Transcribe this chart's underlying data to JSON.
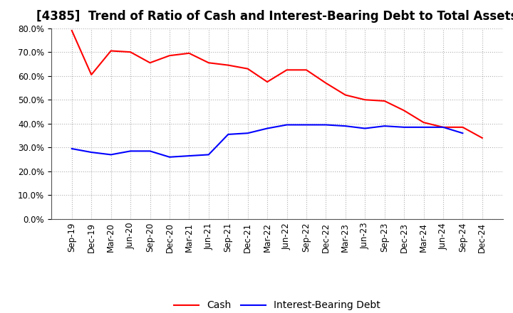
{
  "title": "[4385]  Trend of Ratio of Cash and Interest-Bearing Debt to Total Assets",
  "x_labels": [
    "Sep-19",
    "Dec-19",
    "Mar-20",
    "Jun-20",
    "Sep-20",
    "Dec-20",
    "Mar-21",
    "Jun-21",
    "Sep-21",
    "Dec-21",
    "Mar-22",
    "Jun-22",
    "Sep-22",
    "Dec-22",
    "Mar-23",
    "Jun-23",
    "Sep-23",
    "Dec-23",
    "Mar-24",
    "Jun-24",
    "Sep-24",
    "Dec-24"
  ],
  "cash": [
    79.0,
    60.5,
    70.5,
    70.0,
    65.5,
    68.5,
    69.5,
    65.5,
    64.5,
    63.0,
    57.5,
    62.5,
    62.5,
    57.0,
    52.0,
    50.0,
    49.5,
    45.5,
    40.5,
    38.5,
    38.5,
    34.0
  ],
  "debt": [
    29.5,
    28.0,
    27.0,
    28.5,
    28.5,
    26.0,
    26.5,
    27.0,
    35.5,
    36.0,
    38.0,
    39.5,
    39.5,
    39.5,
    39.0,
    38.0,
    39.0,
    38.5,
    38.5,
    38.5,
    36.0,
    null
  ],
  "cash_color": "#ff0000",
  "debt_color": "#0000ff",
  "ylim": [
    0.0,
    80.0
  ],
  "yticks": [
    0.0,
    10.0,
    20.0,
    30.0,
    40.0,
    50.0,
    60.0,
    70.0,
    80.0
  ],
  "legend_cash": "Cash",
  "legend_debt": "Interest-Bearing Debt",
  "background_color": "#ffffff",
  "grid_color": "#b0b0b0",
  "title_fontsize": 12,
  "tick_fontsize": 8.5,
  "legend_fontsize": 10
}
